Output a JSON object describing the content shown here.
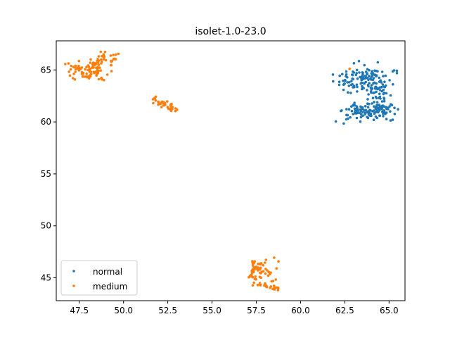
{
  "chart_data": {
    "type": "scatter",
    "title": "isolet-1.0-23.0",
    "xlabel": "",
    "ylabel": "",
    "xlim": [
      46.2,
      65.9
    ],
    "ylim": [
      42.8,
      67.8
    ],
    "xticks": [
      47.5,
      50.0,
      52.5,
      55.0,
      57.5,
      60.0,
      62.5,
      65.0
    ],
    "yticks": [
      45,
      50,
      55,
      60,
      65
    ],
    "xtick_labels": [
      "47.5",
      "50.0",
      "52.5",
      "55.0",
      "57.5",
      "60.0",
      "62.5",
      "65.0"
    ],
    "ytick_labels": [
      "45",
      "50",
      "55",
      "60",
      "65"
    ],
    "grid": false,
    "legend_position": "lower-left",
    "series": [
      {
        "name": "normal",
        "color": "#1f77b4",
        "clusters": [
          {
            "shape": "blob",
            "center": [
              63.6,
              64.1
            ],
            "spread": [
              0.75,
              0.7
            ],
            "count": 120
          },
          {
            "shape": "blob",
            "center": [
              64.5,
              62.3
            ],
            "spread": [
              0.35,
              0.9
            ],
            "count": 60
          },
          {
            "shape": "blob",
            "center": [
              63.8,
              61.0
            ],
            "spread": [
              0.75,
              0.45
            ],
            "count": 110
          }
        ]
      },
      {
        "name": "medium",
        "color": "#ff7f0e",
        "clusters": [
          {
            "shape": "blob",
            "center": [
              48.0,
              65.0
            ],
            "spread": [
              0.6,
              0.5
            ],
            "count": 90
          },
          {
            "shape": "blob",
            "center": [
              49.0,
              66.0
            ],
            "spread": [
              0.45,
              0.3
            ],
            "count": 30
          },
          {
            "shape": "line",
            "from": [
              51.8,
              62.1
            ],
            "to": [
              53.1,
              61.1
            ],
            "jitter": [
              0.12,
              0.15
            ],
            "count": 40
          },
          {
            "shape": "blob",
            "center": [
              57.4,
              45.5
            ],
            "spread": [
              0.15,
              0.55
            ],
            "count": 30
          },
          {
            "shape": "blob",
            "center": [
              58.0,
              45.7
            ],
            "spread": [
              0.4,
              0.5
            ],
            "count": 35
          },
          {
            "shape": "line",
            "from": [
              57.7,
              44.4
            ],
            "to": [
              58.8,
              43.9
            ],
            "jitter": [
              0.1,
              0.1
            ],
            "count": 25
          },
          {
            "shape": "blob",
            "center": [
              62.8,
              65.1
            ],
            "spread": [
              0.02,
              0.02
            ],
            "count": 1
          }
        ]
      }
    ]
  }
}
